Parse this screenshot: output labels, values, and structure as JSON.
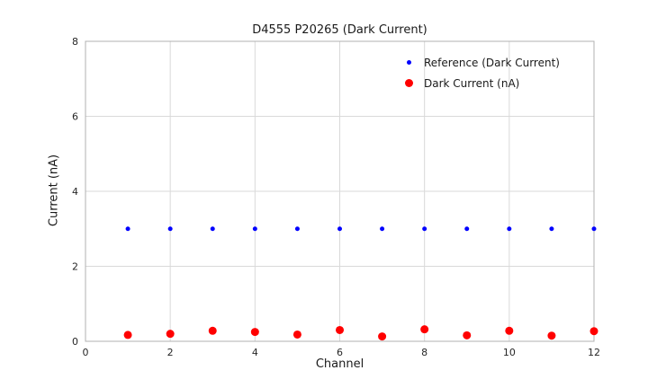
{
  "chart": {
    "title": "D4555 P20265 (Dark Current)",
    "xlabel": "Channel",
    "ylabel": "Current (nA)"
  },
  "chart_data": {
    "type": "scatter",
    "title": "D4555 P20265 (Dark Current)",
    "xlabel": "Channel",
    "ylabel": "Current (nA)",
    "xlim": [
      0,
      12
    ],
    "ylim": [
      0,
      8
    ],
    "x_ticks": [
      0,
      2,
      4,
      6,
      8,
      10,
      12
    ],
    "y_ticks": [
      0,
      2,
      4,
      6,
      8
    ],
    "grid": true,
    "legend_position": "upper right",
    "grid_color": "#d9d9d9",
    "border_color": "#b0b0b0",
    "series": [
      {
        "name": "Reference (Dark Current)",
        "color": "#0000ff",
        "marker_radius": 2.5,
        "x": [
          1,
          2,
          3,
          4,
          5,
          6,
          7,
          8,
          9,
          10,
          11,
          12
        ],
        "y": [
          3.0,
          3.0,
          3.0,
          3.0,
          3.0,
          3.0,
          3.0,
          3.0,
          3.0,
          3.0,
          3.0,
          3.0
        ]
      },
      {
        "name": "Dark Current (nA)",
        "color": "#ff0000",
        "marker_radius": 4.5,
        "x": [
          1,
          2,
          3,
          4,
          5,
          6,
          7,
          8,
          9,
          10,
          11,
          12
        ],
        "y": [
          0.17,
          0.2,
          0.28,
          0.25,
          0.18,
          0.3,
          0.13,
          0.32,
          0.16,
          0.28,
          0.15,
          0.27
        ]
      }
    ]
  }
}
